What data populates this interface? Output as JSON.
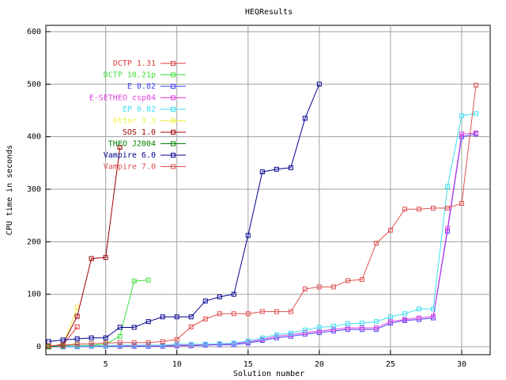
{
  "chart_data": {
    "type": "line",
    "title": "HEQResults",
    "x_label": "Solution number",
    "y_label": "CPU time in seconds",
    "xlim": [
      0.8,
      32
    ],
    "ylim": [
      -15,
      612
    ],
    "xticks": [
      5,
      10,
      15,
      20,
      25,
      30
    ],
    "yticks": [
      0,
      100,
      200,
      300,
      400,
      500,
      600
    ],
    "grid": true,
    "series": [
      {
        "name": "DCTP 1.31",
        "color": "#e03c3c",
        "x": [
          1,
          2,
          3
        ],
        "values": [
          0,
          3,
          38
        ]
      },
      {
        "name": "DCTP 10.21p",
        "color": "#40e040",
        "x": [
          1,
          2,
          3,
          4,
          5,
          6,
          7,
          8
        ],
        "values": [
          0,
          1,
          2,
          3,
          5,
          20,
          125,
          127
        ]
      },
      {
        "name": "E 0.82",
        "color": "#4040ff",
        "x": [
          1,
          2,
          3,
          4,
          5,
          6,
          7,
          8,
          9,
          10,
          11,
          12,
          13,
          14,
          15,
          16,
          17,
          18,
          19,
          20,
          21,
          22,
          23,
          24,
          25,
          26,
          27,
          28,
          29,
          30,
          31
        ],
        "values": [
          0,
          0,
          0,
          1,
          1,
          1,
          1,
          1,
          1,
          2,
          2,
          3,
          4,
          4,
          7,
          12,
          17,
          20,
          24,
          27,
          30,
          33,
          33,
          33,
          45,
          50,
          52,
          55,
          220,
          400,
          405
        ]
      },
      {
        "name": "E-SETHEO csp04",
        "color": "#e040e0",
        "x": [
          1,
          2,
          3,
          4,
          5,
          6,
          7,
          8,
          9,
          10,
          11,
          12,
          13,
          14,
          15,
          16,
          17,
          18,
          19,
          20,
          21,
          22,
          23,
          24,
          25,
          26,
          27,
          28,
          29,
          30,
          31
        ],
        "values": [
          0,
          1,
          1,
          2,
          2,
          2,
          2,
          2,
          2,
          3,
          3,
          4,
          5,
          6,
          9,
          14,
          20,
          23,
          27,
          30,
          33,
          36,
          36,
          36,
          48,
          52,
          55,
          58,
          225,
          405,
          407
        ]
      },
      {
        "name": "EP 0.82",
        "color": "#40e0f0",
        "x": [
          1,
          2,
          3,
          4,
          5,
          6,
          7,
          8,
          9,
          10,
          11,
          12,
          13,
          14,
          15,
          16,
          17,
          18,
          19,
          20,
          21,
          22,
          23,
          24,
          25,
          26,
          27,
          28,
          29,
          30,
          31
        ],
        "values": [
          1,
          1,
          1,
          2,
          2,
          3,
          3,
          3,
          3,
          5,
          5,
          5,
          6,
          7,
          11,
          17,
          23,
          26,
          32,
          37,
          39,
          44,
          45,
          48,
          57,
          63,
          72,
          72,
          305,
          440,
          444
        ]
      },
      {
        "name": "Otter 3.3",
        "color": "#f0f040",
        "x": [
          1,
          2,
          3
        ],
        "values": [
          1,
          2,
          75
        ]
      },
      {
        "name": "SOS 1.0",
        "color": "#a00000",
        "x": [
          1,
          2,
          3,
          4,
          5,
          6
        ],
        "values": [
          0,
          5,
          58,
          168,
          170,
          380
        ]
      },
      {
        "name": "THEO J2004",
        "color": "#008000",
        "x": [
          1,
          2,
          3
        ],
        "values": [
          0,
          2,
          5
        ]
      },
      {
        "name": "Vampire 6.0",
        "color": "#000090",
        "x": [
          1,
          2,
          3,
          4,
          5,
          6,
          7,
          8,
          9,
          10,
          11,
          12,
          13,
          14,
          15,
          16,
          17,
          18,
          19,
          20
        ],
        "values": [
          10,
          13,
          15,
          17,
          17,
          37,
          37,
          48,
          57,
          57,
          57,
          87,
          95,
          100,
          212,
          333,
          338,
          341,
          435,
          500
        ]
      },
      {
        "name": "Vampire 7.0",
        "color": "#e05050",
        "x": [
          1,
          2,
          3,
          4,
          5,
          6,
          7,
          8,
          9,
          10,
          11,
          12,
          13,
          14,
          15,
          16,
          17,
          18,
          19,
          20,
          21,
          22,
          23,
          24,
          25,
          26,
          27,
          28,
          29,
          30,
          31
        ],
        "values": [
          2,
          3,
          5,
          6,
          7,
          8,
          8,
          8,
          10,
          14,
          38,
          53,
          63,
          63,
          63,
          67,
          67,
          67,
          110,
          114,
          114,
          126,
          128,
          197,
          222,
          262,
          262,
          264,
          264,
          273,
          498
        ]
      }
    ]
  }
}
